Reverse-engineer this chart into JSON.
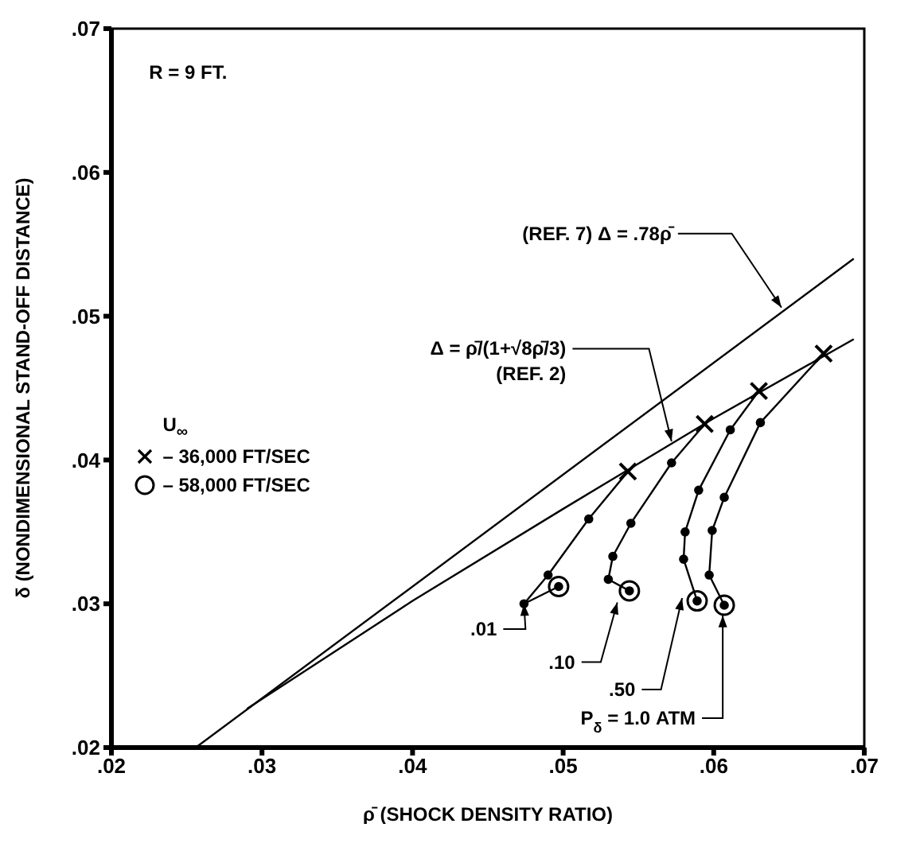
{
  "chart_data": {
    "type": "line",
    "xlabel": "ρ̄ (SHOCK DENSITY RATIO)",
    "ylabel": "δ (NONDIMENSIONAL STAND-OFF DISTANCE)",
    "legend_title": "U$_{∞}$",
    "legend": "left",
    "grid": false,
    "xlim": [
      0.02,
      0.07
    ],
    "xticks": [
      {
        "value": 0.02,
        "label": ".02"
      },
      {
        "value": 0.03,
        "label": ".03"
      },
      {
        "value": 0.04,
        "label": ".04"
      },
      {
        "value": 0.05,
        "label": ".05"
      },
      {
        "value": 0.06,
        "label": ".06"
      },
      {
        "value": 0.07,
        "label": ".07"
      }
    ],
    "ylim": [
      0.02,
      0.07
    ],
    "yticks": [
      {
        "value": 0.02,
        "label": ".02"
      },
      {
        "value": 0.03,
        "label": ".03"
      },
      {
        "value": 0.04,
        "label": ".04"
      },
      {
        "value": 0.05,
        "label": ".05"
      },
      {
        "value": 0.06,
        "label": ".06"
      },
      {
        "value": 0.07,
        "label": ".07"
      }
    ],
    "series": [
      {
        "color": "#000000",
        "marker": "none",
        "x": [
          0.0256,
          0.0693
        ],
        "values": [
          0.02,
          0.054
        ]
      },
      {
        "color": "#000000",
        "marker": "none",
        "x": [
          0.029,
          0.04,
          0.05,
          0.06,
          0.0693
        ],
        "values": [
          0.0227,
          0.0302,
          0.0366,
          0.0429,
          0.0484
        ]
      },
      {
        "color": "#000000",
        "marker": "circle",
        "x": [
          0.0543,
          0.0517,
          0.049,
          0.0474,
          0.0497
        ],
        "values": [
          0.0392,
          0.0359,
          0.032,
          0.03,
          0.0312
        ]
      },
      {
        "color": "#000000",
        "marker": "circle",
        "x": [
          0.0594,
          0.0572,
          0.0545,
          0.0533,
          0.053,
          0.0544
        ],
        "values": [
          0.0425,
          0.0398,
          0.0356,
          0.0333,
          0.0317,
          0.0309
        ]
      },
      {
        "color": "#000000",
        "marker": "circle",
        "x": [
          0.063,
          0.0611,
          0.059,
          0.0581,
          0.058,
          0.0589
        ],
        "values": [
          0.0448,
          0.0421,
          0.0379,
          0.035,
          0.0331,
          0.0302
        ]
      },
      {
        "color": "#000000",
        "marker": "circle",
        "x": [
          0.0673,
          0.0631,
          0.0607,
          0.0599,
          0.0597,
          0.0607
        ],
        "values": [
          0.0474,
          0.0426,
          0.0374,
          0.0351,
          0.032,
          0.0299
        ]
      },
      {
        "type": "scatter",
        "name": "– 36,000 FT/SEC",
        "color": "#000000",
        "marker": "cross",
        "x": [
          0.0543,
          0.0594,
          0.063,
          0.0673
        ],
        "values": [
          0.0392,
          0.0425,
          0.0448,
          0.0474
        ]
      },
      {
        "type": "scatter",
        "name": "– 58,000 FT/SEC",
        "color": "#000000",
        "marker": "circle",
        "x": [
          0.0497,
          0.0544,
          0.0589,
          0.0607
        ],
        "values": [
          0.0312,
          0.0309,
          0.0302,
          0.0299
        ]
      }
    ],
    "annotations": [
      "R = 9 FT.",
      {
        "text": "(REF. 7)  Δ = .78ρ̄",
        "x": 0.0645,
        "y": 0.0506
      },
      {
        "text": "Δ = ρ̄/(1+√8ρ̄/3)\n(REF. 2)",
        "x": 0.0572,
        "y": 0.0413
      },
      {
        "text": ".01",
        "x": 0.0474,
        "y": 0.03
      },
      {
        "text": ".10",
        "x": 0.0536,
        "y": 0.0301
      },
      {
        "text": ".50",
        "x": 0.0579,
        "y": 0.0304
      },
      {
        "text": "P$_{δ}$ = 1.0 ATM",
        "x": 0.0606,
        "y": 0.0292
      }
    ]
  }
}
